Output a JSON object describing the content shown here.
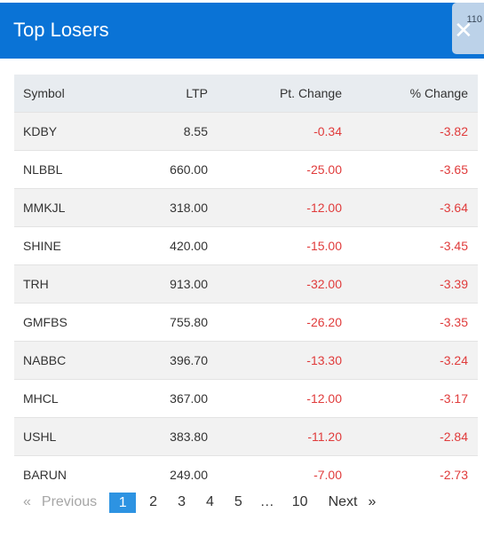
{
  "header": {
    "title": "Top Losers",
    "close_count": "110",
    "close_icon": "✕"
  },
  "table": {
    "columns": [
      "Symbol",
      "LTP",
      "Pt. Change",
      "% Change"
    ],
    "rows": [
      {
        "symbol": "KDBY",
        "ltp": "8.55",
        "pt_change": "-0.34",
        "pct_change": "-3.82"
      },
      {
        "symbol": "NLBBL",
        "ltp": "660.00",
        "pt_change": "-25.00",
        "pct_change": "-3.65"
      },
      {
        "symbol": "MMKJL",
        "ltp": "318.00",
        "pt_change": "-12.00",
        "pct_change": "-3.64"
      },
      {
        "symbol": "SHINE",
        "ltp": "420.00",
        "pt_change": "-15.00",
        "pct_change": "-3.45"
      },
      {
        "symbol": "TRH",
        "ltp": "913.00",
        "pt_change": "-32.00",
        "pct_change": "-3.39"
      },
      {
        "symbol": "GMFBS",
        "ltp": "755.80",
        "pt_change": "-26.20",
        "pct_change": "-3.35"
      },
      {
        "symbol": "NABBC",
        "ltp": "396.70",
        "pt_change": "-13.30",
        "pct_change": "-3.24"
      },
      {
        "symbol": "MHCL",
        "ltp": "367.00",
        "pt_change": "-12.00",
        "pct_change": "-3.17"
      },
      {
        "symbol": "USHL",
        "ltp": "383.80",
        "pt_change": "-11.20",
        "pct_change": "-2.84"
      },
      {
        "symbol": "BARUN",
        "ltp": "249.00",
        "pt_change": "-7.00",
        "pct_change": "-2.73"
      }
    ]
  },
  "pagination": {
    "prev_arrow": "«",
    "previous": "Previous",
    "pages": [
      "1",
      "2",
      "3",
      "4",
      "5"
    ],
    "ellipsis": "…",
    "last_page": "10",
    "next": "Next",
    "next_arrow": "»",
    "active_page": "1"
  },
  "colors": {
    "header_bg": "#0a73d6",
    "negative": "#e03b3b",
    "active_page": "#2d93e2"
  }
}
